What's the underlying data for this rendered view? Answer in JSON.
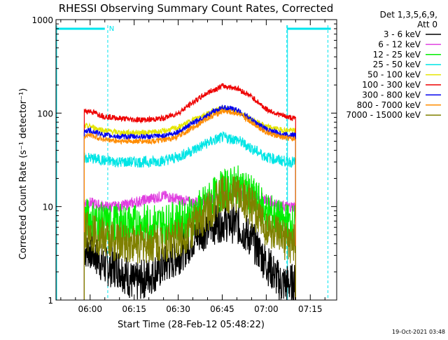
{
  "chart_data": {
    "type": "line",
    "title": "RHESSI Observing Summary Count Rates, Corrected",
    "xlabel": "Start Time (28-Feb-12 05:48:22)",
    "ylabel": "Corrected Count Rate (s⁻¹ detector⁻¹)",
    "yscale": "log",
    "ylim": [
      1,
      1000
    ],
    "xlim": [
      "05:48:22",
      "07:24:00"
    ],
    "x_ticks": [
      "06:00",
      "06:15",
      "06:30",
      "06:45",
      "07:00",
      "07:15"
    ],
    "y_ticks": [
      "1",
      "10",
      "100",
      "1000"
    ],
    "legend_header": [
      "Det 1,3,5,6,9,",
      "Att 0"
    ],
    "legend_placement": "right, outside",
    "timestamp": "19-Oct-2021 03:48",
    "data_start": "05:58",
    "data_end": "07:10",
    "annotations": {
      "night_bars": [
        {
          "start": "05:48:22",
          "end": "06:05",
          "label": "N"
        },
        {
          "start": "07:07",
          "end": "07:22",
          "label": ""
        }
      ],
      "night_markers": [
        "06:06",
        "07:07",
        "07:21"
      ],
      "attenuator_marker": "05:48:22"
    },
    "series": [
      {
        "name": "3 - 6 keV",
        "color": "#000000",
        "x": [
          "06:00",
          "06:05",
          "06:10",
          "06:15",
          "06:20",
          "06:25",
          "06:30",
          "06:35",
          "06:40",
          "06:45",
          "06:50",
          "06:55",
          "07:00",
          "07:05",
          "07:09"
        ],
        "values": [
          3.5,
          2.3,
          2.2,
          1.5,
          1.8,
          2.3,
          3.0,
          4.5,
          6.0,
          7.0,
          6.5,
          4.5,
          2.5,
          1.5,
          1.5
        ]
      },
      {
        "name": "6 - 12 keV",
        "color": "#e040e0",
        "x": [
          "06:00",
          "06:05",
          "06:10",
          "06:15",
          "06:20",
          "06:25",
          "06:30",
          "06:35",
          "06:40",
          "06:45",
          "06:50",
          "06:55",
          "07:00",
          "07:05",
          "07:09"
        ],
        "values": [
          11,
          10,
          10,
          11,
          12,
          13,
          12,
          11,
          12,
          13,
          14,
          13,
          12,
          10,
          10
        ]
      },
      {
        "name": "12 - 25 keV",
        "color": "#00ee00",
        "x": [
          "06:00",
          "06:05",
          "06:10",
          "06:15",
          "06:20",
          "06:25",
          "06:30",
          "06:35",
          "06:40",
          "06:45",
          "06:50",
          "06:55",
          "07:00",
          "07:05",
          "07:09"
        ],
        "values": [
          7.5,
          6.5,
          6.5,
          6.5,
          6.5,
          6.5,
          7.0,
          8.0,
          11,
          15,
          17,
          13,
          9,
          7,
          6.5
        ]
      },
      {
        "name": "25 - 50 keV",
        "color": "#00e5e5",
        "x": [
          "06:00",
          "06:05",
          "06:10",
          "06:15",
          "06:20",
          "06:25",
          "06:30",
          "06:35",
          "06:40",
          "06:45",
          "06:50",
          "06:55",
          "07:00",
          "07:05",
          "07:09"
        ],
        "values": [
          33,
          31,
          30,
          30,
          30,
          31,
          34,
          40,
          48,
          55,
          52,
          42,
          34,
          31,
          30
        ]
      },
      {
        "name": "50 - 100 keV",
        "color": "#e5e500",
        "x": [
          "06:00",
          "06:05",
          "06:10",
          "06:15",
          "06:20",
          "06:25",
          "06:30",
          "06:35",
          "06:40",
          "06:45",
          "06:50",
          "06:55",
          "07:00",
          "07:05",
          "07:09"
        ],
        "values": [
          72,
          65,
          62,
          62,
          62,
          64,
          70,
          85,
          100,
          112,
          105,
          85,
          72,
          66,
          65
        ]
      },
      {
        "name": "100 - 300 keV",
        "color": "#ee0000",
        "x": [
          "06:00",
          "06:05",
          "06:10",
          "06:15",
          "06:20",
          "06:25",
          "06:30",
          "06:35",
          "06:40",
          "06:45",
          "06:50",
          "06:55",
          "07:00",
          "07:05",
          "07:09"
        ],
        "values": [
          105,
          92,
          88,
          85,
          85,
          88,
          100,
          130,
          165,
          195,
          185,
          150,
          110,
          95,
          88
        ]
      },
      {
        "name": "300 - 800 keV",
        "color": "#0000ee",
        "x": [
          "06:00",
          "06:05",
          "06:10",
          "06:15",
          "06:20",
          "06:25",
          "06:30",
          "06:35",
          "06:40",
          "06:45",
          "06:50",
          "06:55",
          "07:00",
          "07:05",
          "07:09"
        ],
        "values": [
          65,
          58,
          56,
          56,
          56,
          57,
          63,
          78,
          95,
          115,
          108,
          85,
          67,
          60,
          58
        ]
      },
      {
        "name": "800 - 7000 keV",
        "color": "#ff8c00",
        "x": [
          "06:00",
          "06:05",
          "06:10",
          "06:15",
          "06:20",
          "06:25",
          "06:30",
          "06:35",
          "06:40",
          "06:45",
          "06:50",
          "06:55",
          "07:00",
          "07:05",
          "07:09"
        ],
        "values": [
          58,
          52,
          50,
          50,
          50,
          51,
          56,
          70,
          88,
          105,
          100,
          80,
          62,
          55,
          53
        ]
      },
      {
        "name": "7000 - 15000 keV",
        "color": "#808000",
        "x": [
          "06:00",
          "06:05",
          "06:10",
          "06:15",
          "06:20",
          "06:25",
          "06:30",
          "06:35",
          "06:40",
          "06:45",
          "06:50",
          "06:55",
          "07:00",
          "07:05",
          "07:09"
        ],
        "values": [
          5.5,
          4.5,
          4.2,
          4.0,
          4.0,
          4.2,
          4.5,
          6.0,
          9.0,
          13,
          14,
          10,
          6.0,
          4.5,
          4.0
        ]
      }
    ]
  }
}
